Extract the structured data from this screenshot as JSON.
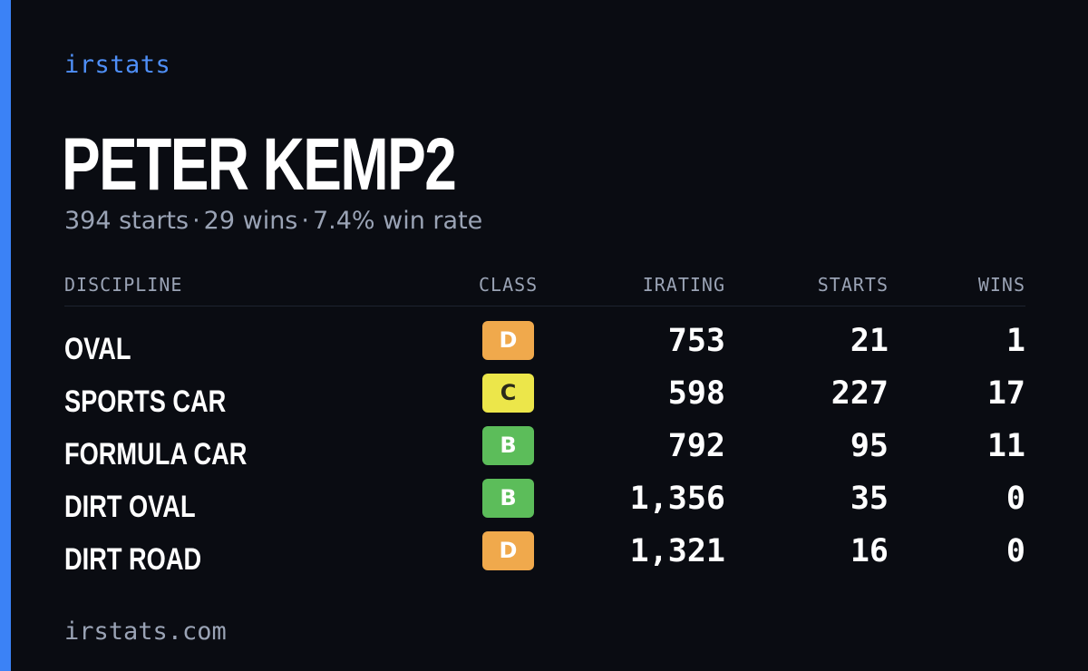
{
  "brand": "irstats",
  "driver": {
    "name": "PETER KEMP2",
    "summary": {
      "starts": "394 starts",
      "wins": "29 wins",
      "win_rate": "7.4% win rate",
      "separator": "·"
    }
  },
  "table": {
    "headers": {
      "discipline": "DISCIPLINE",
      "class": "CLASS",
      "irating": "IRATING",
      "starts": "STARTS",
      "wins": "WINS"
    },
    "rows": [
      {
        "discipline": "OVAL",
        "class": "D",
        "class_color": "#f0a94c",
        "class_text_color": "#ffffff",
        "irating": "753",
        "starts": "21",
        "wins": "1"
      },
      {
        "discipline": "SPORTS CAR",
        "class": "C",
        "class_color": "#ece64a",
        "class_text_color": "#2a2a1a",
        "irating": "598",
        "starts": "227",
        "wins": "17"
      },
      {
        "discipline": "FORMULA CAR",
        "class": "B",
        "class_color": "#5cbd5a",
        "class_text_color": "#ffffff",
        "irating": "792",
        "starts": "95",
        "wins": "11"
      },
      {
        "discipline": "DIRT OVAL",
        "class": "B",
        "class_color": "#5cbd5a",
        "class_text_color": "#ffffff",
        "irating": "1,356",
        "starts": "35",
        "wins": "0"
      },
      {
        "discipline": "DIRT ROAD",
        "class": "D",
        "class_color": "#f0a94c",
        "class_text_color": "#ffffff",
        "irating": "1,321",
        "starts": "16",
        "wins": "0"
      }
    ]
  },
  "footer": "irstats.com",
  "colors": {
    "background": "#0a0c12",
    "accent": "#3b82f6",
    "muted_text": "#9aa3b5"
  }
}
